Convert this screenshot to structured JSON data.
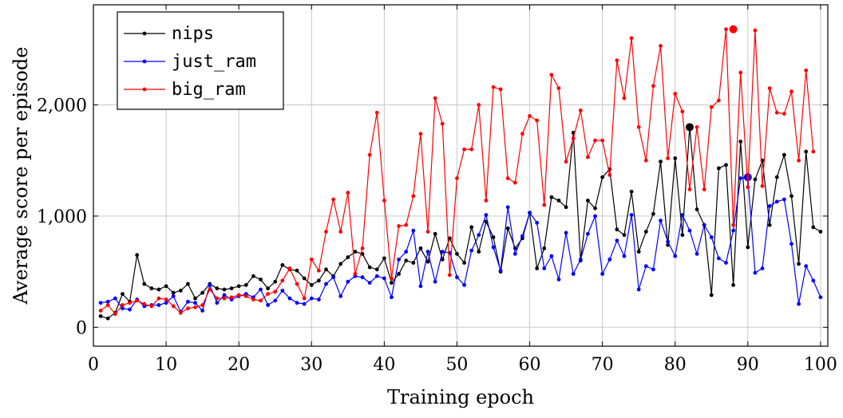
{
  "chart_data": {
    "type": "line",
    "title": "",
    "xlabel": "Training epoch",
    "ylabel": "Average score per episode",
    "xlim": [
      0,
      101
    ],
    "ylim": [
      -170,
      2900
    ],
    "x_ticks": [
      0,
      10,
      20,
      30,
      40,
      50,
      60,
      70,
      80,
      90,
      100
    ],
    "y_ticks": [
      0,
      1000,
      2000
    ],
    "y_tick_labels": [
      "0",
      "1,000",
      "2,000"
    ],
    "grid": true,
    "legend_position": "top-left",
    "series": [
      {
        "name": "nips",
        "color": "#000000",
        "max_point": {
          "x": 82,
          "y": 1800
        },
        "values": [
          100,
          80,
          130,
          300,
          230,
          650,
          390,
          350,
          340,
          370,
          310,
          330,
          390,
          260,
          310,
          390,
          350,
          340,
          350,
          370,
          380,
          460,
          430,
          350,
          410,
          560,
          520,
          510,
          440,
          380,
          420,
          520,
          460,
          570,
          630,
          680,
          660,
          540,
          520,
          620,
          400,
          480,
          600,
          580,
          710,
          590,
          840,
          610,
          800,
          660,
          580,
          900,
          680,
          950,
          810,
          500,
          890,
          710,
          800,
          1030,
          530,
          710,
          1170,
          1140,
          1080,
          1750,
          600,
          1140,
          1070,
          1350,
          1420,
          880,
          830,
          1220,
          680,
          860,
          1020,
          1490,
          740,
          1520,
          830,
          1800,
          1060,
          920,
          290,
          1430,
          1460,
          380,
          1670,
          720,
          1330,
          1500,
          920,
          1350,
          1550,
          1180,
          570,
          1580,
          900,
          860
        ]
      },
      {
        "name": "just_ram",
        "color": "#0000ff",
        "max_point": {
          "x": 90,
          "y": 1350
        },
        "values": [
          220,
          230,
          260,
          170,
          160,
          250,
          190,
          200,
          200,
          220,
          280,
          140,
          230,
          220,
          150,
          380,
          220,
          290,
          250,
          280,
          300,
          270,
          340,
          200,
          240,
          330,
          260,
          220,
          210,
          260,
          250,
          390,
          450,
          280,
          410,
          460,
          450,
          400,
          460,
          440,
          270,
          610,
          680,
          870,
          370,
          680,
          410,
          680,
          670,
          450,
          380,
          690,
          830,
          1010,
          720,
          510,
          1080,
          660,
          820,
          1030,
          940,
          530,
          640,
          430,
          850,
          480,
          610,
          840,
          1000,
          480,
          610,
          780,
          640,
          1010,
          340,
          550,
          520,
          960,
          770,
          640,
          1010,
          870,
          660,
          920,
          810,
          620,
          580,
          870,
          1340,
          1350,
          490,
          530,
          1090,
          1130,
          1150,
          750,
          210,
          550,
          420,
          270
        ]
      },
      {
        "name": "big_ram",
        "color": "#ff0000",
        "max_point": {
          "x": 88,
          "y": 2680
        },
        "values": [
          150,
          200,
          120,
          200,
          220,
          240,
          210,
          190,
          260,
          250,
          190,
          130,
          170,
          180,
          200,
          340,
          260,
          260,
          270,
          290,
          280,
          250,
          240,
          300,
          320,
          420,
          530,
          390,
          260,
          610,
          510,
          860,
          1150,
          860,
          1210,
          480,
          710,
          1550,
          1930,
          1140,
          440,
          910,
          920,
          1180,
          1740,
          860,
          2060,
          1830,
          470,
          1340,
          1600,
          1600,
          2000,
          1140,
          2160,
          2140,
          1340,
          1300,
          1740,
          1900,
          1860,
          1100,
          2270,
          2150,
          1490,
          1700,
          1950,
          1530,
          1680,
          1680,
          1370,
          2400,
          2060,
          2600,
          1800,
          1500,
          2170,
          2530,
          1520,
          2100,
          1940,
          1240,
          1800,
          1240,
          1980,
          2040,
          2680,
          920,
          2290,
          1260,
          2670,
          1270,
          2150,
          1930,
          1920,
          2120,
          1500,
          2310,
          1580
        ]
      }
    ]
  }
}
